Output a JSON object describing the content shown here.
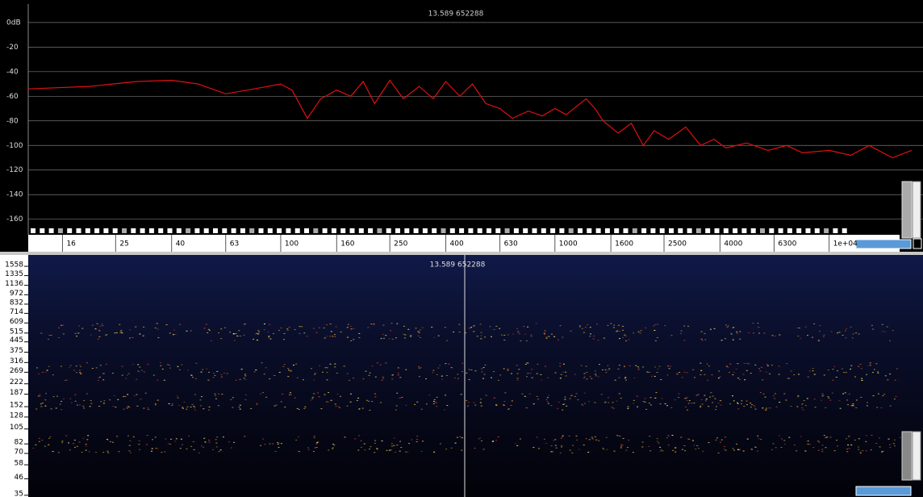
{
  "chart_data": {
    "type": "line",
    "title": "13.589  652288",
    "x": [
      12,
      20,
      30,
      40,
      50,
      63,
      80,
      100,
      110,
      125,
      140,
      160,
      180,
      200,
      220,
      250,
      280,
      320,
      360,
      400,
      450,
      500,
      560,
      630,
      700,
      800,
      900,
      1000,
      1100,
      1300,
      1400,
      1500,
      1700,
      1900,
      2100,
      2300,
      2600,
      3000,
      3400,
      3800,
      4200,
      5000,
      6000,
      7000,
      8000,
      10000,
      12000,
      14000,
      17000,
      20000
    ],
    "series": [
      {
        "color": "#e01010",
        "values": [
          -54,
          -52,
          -48,
          -47,
          -50,
          -58,
          -54,
          -50,
          -55,
          -78,
          -62,
          -55,
          -60,
          -48,
          -66,
          -47,
          -62,
          -52,
          -62,
          -48,
          -60,
          -50,
          -66,
          -70,
          -78,
          -72,
          -76,
          -70,
          -75,
          -62,
          -70,
          -80,
          -90,
          -82,
          -100,
          -88,
          -95,
          -85,
          -100,
          -95,
          -102,
          -98,
          -104,
          -100,
          -106,
          -104,
          -108,
          -100,
          -110,
          -104
        ]
      }
    ],
    "xlim": [
      12,
      22000
    ],
    "log_x": true,
    "xticks": [
      16,
      25,
      40,
      63,
      100,
      160,
      250,
      400,
      630,
      1000,
      1600,
      2500,
      4000,
      6300,
      {
        "value": 10000,
        "label": "1e+04"
      }
    ],
    "ylim": [
      -172,
      15
    ],
    "yticks": [
      {
        "value": 0,
        "label": "0dB"
      },
      -20,
      -40,
      -60,
      -80,
      -100,
      -120,
      -140,
      -160
    ],
    "grid": true
  },
  "spectrogram": {
    "readout": "13.589  652288",
    "log_y": true,
    "ylim": [
      34,
      1880
    ],
    "yticks": [
      1558,
      1335,
      1136,
      972,
      832,
      714,
      609,
      515,
      445,
      375,
      316,
      269,
      222,
      187,
      152,
      128,
      105,
      82,
      70,
      58,
      46,
      35
    ]
  }
}
